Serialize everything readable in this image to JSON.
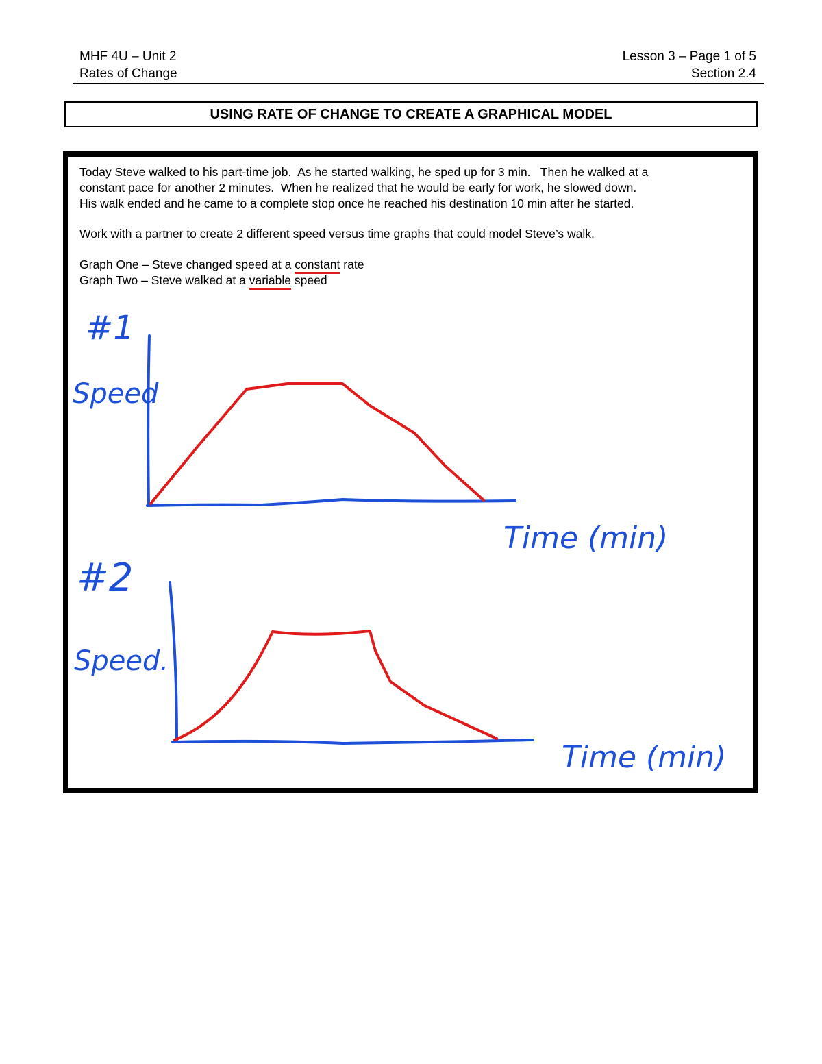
{
  "header": {
    "left": [
      "MHF 4U – Unit 2",
      "Rates of Change"
    ],
    "right": [
      "Lesson 3 – Page 1 of 5",
      "Section 2.4"
    ]
  },
  "title": "USING RATE OF CHANGE TO CREATE A GRAPHICAL MODEL",
  "paragraph": [
    "Today Steve walked to his part-time job.  As he started walking, he sped up for 3 min.   Then he walked at a",
    "constant pace for another 2 minutes.  When he realized that he would be early for work, he slowed down.",
    "His walk ended and he came to a complete stop once he reached his destination 10 min after he started."
  ],
  "instruction": "Work with a partner to create 2 different speed versus time graphs that could model Steve’s walk.",
  "graph_one": [
    "Graph One – Steve changed speed at a ",
    "constant",
    " rate"
  ],
  "graph_two": [
    "Graph Two – Steve walked at a ",
    "variable",
    " speed"
  ],
  "sketch_one": {
    "label": "#1",
    "y_label": "Speed",
    "x_label": "Time (min)"
  },
  "sketch_two": {
    "label": "#2",
    "y_label": "Speed.",
    "x_label": "Time (min)"
  }
}
